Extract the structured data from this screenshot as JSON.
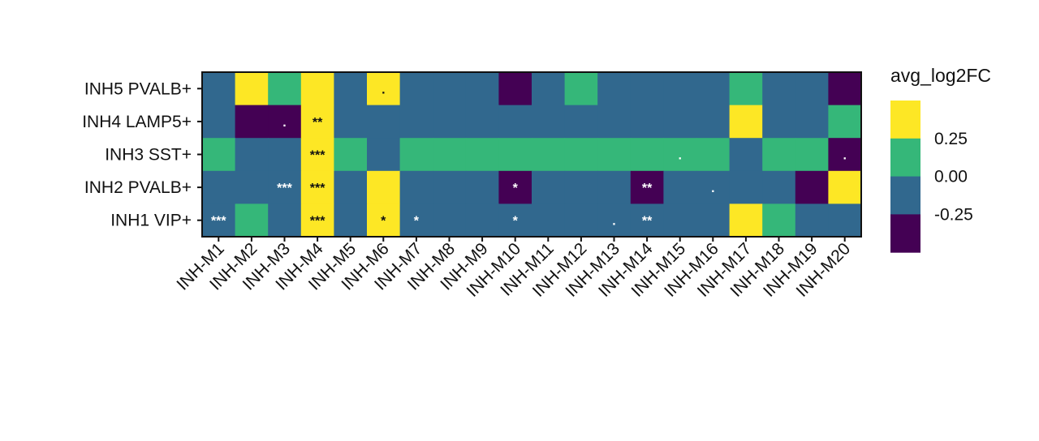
{
  "chart_data": {
    "type": "heatmap",
    "title": "",
    "xlabel": "",
    "ylabel": "",
    "x": [
      "INH-M1",
      "INH-M2",
      "INH-M3",
      "INH-M4",
      "INH-M5",
      "INH-M6",
      "INH-M7",
      "INH-M8",
      "INH-M9",
      "INH-M10",
      "INH-M11",
      "INH-M12",
      "INH-M13",
      "INH-M14",
      "INH-M15",
      "INH-M16",
      "INH-M17",
      "INH-M18",
      "INH-M19",
      "INH-M20"
    ],
    "y": [
      "INH5 PVALB+",
      "INH4 LAMP5+",
      "INH3 SST+",
      "INH2 PVALB+",
      "INH1 VIP+"
    ],
    "values": [
      [
        -0.2,
        0.4,
        0.1,
        0.4,
        -0.2,
        0.4,
        -0.2,
        -0.2,
        -0.2,
        -0.4,
        -0.2,
        0.1,
        -0.2,
        -0.2,
        -0.2,
        -0.2,
        0.1,
        -0.2,
        -0.2,
        -0.4
      ],
      [
        -0.2,
        -0.4,
        -0.4,
        0.4,
        -0.2,
        -0.2,
        -0.2,
        -0.2,
        -0.2,
        -0.2,
        -0.2,
        -0.2,
        -0.2,
        -0.2,
        -0.2,
        -0.2,
        0.4,
        -0.2,
        -0.2,
        0.1
      ],
      [
        0.1,
        -0.2,
        -0.2,
        0.4,
        0.1,
        -0.2,
        0.1,
        0.1,
        0.1,
        0.1,
        0.1,
        0.1,
        0.1,
        0.1,
        0.1,
        0.1,
        -0.2,
        0.1,
        0.1,
        -0.4
      ],
      [
        -0.2,
        -0.2,
        -0.2,
        0.4,
        -0.2,
        0.4,
        -0.2,
        -0.2,
        -0.2,
        -0.4,
        -0.2,
        -0.2,
        -0.2,
        -0.4,
        -0.2,
        -0.2,
        -0.2,
        -0.2,
        -0.4,
        0.4
      ],
      [
        -0.2,
        0.1,
        -0.2,
        0.4,
        -0.2,
        0.4,
        -0.2,
        -0.2,
        -0.2,
        -0.2,
        -0.2,
        -0.2,
        -0.2,
        -0.2,
        -0.2,
        -0.2,
        0.4,
        0.1,
        -0.2,
        -0.2
      ]
    ],
    "significance": [
      [
        "",
        "",
        "",
        "",
        "",
        ".",
        "",
        "",
        "",
        "",
        "",
        "",
        "",
        "",
        "",
        "",
        "",
        "",
        "",
        ""
      ],
      [
        "",
        "",
        ".",
        "**",
        "",
        "",
        "",
        "",
        "",
        "",
        "",
        "",
        "",
        "",
        "",
        "",
        "",
        "",
        "",
        ""
      ],
      [
        "",
        "",
        "",
        "***",
        "",
        "",
        "",
        "",
        "",
        "",
        "",
        "",
        "",
        "",
        ".",
        "",
        "",
        "",
        "",
        "."
      ],
      [
        "",
        "",
        "***",
        "***",
        "",
        "",
        "",
        "",
        "",
        "*",
        "",
        "",
        "",
        "**",
        "",
        ".",
        "",
        "",
        "",
        ""
      ],
      [
        "***",
        "",
        "",
        "***",
        "",
        "*",
        "*",
        "",
        "",
        "*",
        "",
        "",
        ".",
        "**",
        "",
        "",
        "",
        "",
        "",
        ""
      ]
    ],
    "colorbar": {
      "title": "avg_log2FC",
      "bins": [
        {
          "color": "#fde725"
        },
        {
          "color": "#35b779"
        },
        {
          "color": "#31688e"
        },
        {
          "color": "#440154"
        }
      ],
      "tick_labels": [
        "0.25",
        "0.00",
        "-0.25"
      ],
      "bin_edges": [
        0.375,
        0.25,
        0.0,
        -0.25,
        -0.375
      ]
    },
    "grid": false,
    "legend_position": "right"
  }
}
